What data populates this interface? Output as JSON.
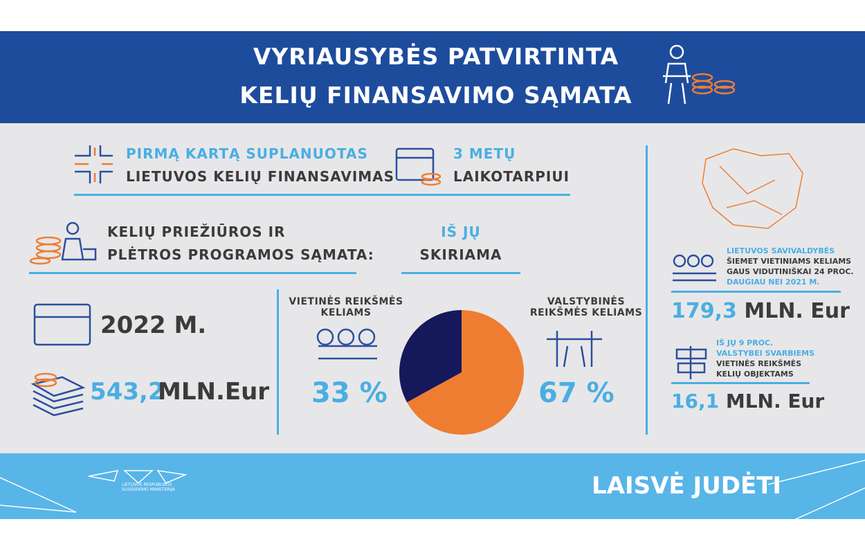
{
  "header": {
    "title_lines": [
      "VYRIAUSYBĖS PATVIRTINTA",
      "KELIŲ FINANSAVIMO SĄMATA"
    ]
  },
  "intro": {
    "line1": "PIRMĄ KARTĄ SUPLANUOTAS",
    "line2": "LIETUVOS KELIŲ FINANSAVIMAS",
    "period1": "3 METŲ",
    "period2": "LAIKOTARPIUI"
  },
  "program": {
    "line1": "KELIŲ PRIEŽIŪROS IR",
    "line2": "PLĖTROS PROGRAMOS SĄMATA:",
    "alloc1": "IŠ JŲ",
    "alloc2": "SKIRIAMA"
  },
  "year": "2022 M.",
  "budget": {
    "amount": "543,2",
    "unit": "MLN.Eur"
  },
  "chart_data": {
    "type": "pie",
    "categories": [
      "VIETINĖS REIKŠMĖS KELIAMS",
      "VALSTYBINĖS REIKŠMĖS KELIAMS"
    ],
    "values": [
      33,
      67
    ],
    "value_labels": [
      "33 %",
      "67 %"
    ],
    "colors": [
      "#15185a",
      "#ee7d32"
    ]
  },
  "municipalities": {
    "lines": [
      "LIETUVOS SAVIVALDYBĖS",
      "ŠIEMET VIETINIAMS KELIAMS",
      "GAUS VIDUTINIŠKAI 24 PROC.",
      "DAUGIAU NEI 2021 M."
    ],
    "amount": "179,3",
    "unit": "MLN. Eur"
  },
  "important": {
    "lines": [
      "IŠ JŲ 9 PROC.",
      "VALSTYBEI SVARBIEMS",
      "VIETINĖS REIKŠMĖS",
      "KELIŲ OBJEKTAMS"
    ],
    "amount": "16,1",
    "unit": "MLN. Eur"
  },
  "footer": {
    "logo_lines": [
      "LIETUVOS RESPUBLIKOS",
      "SUSISIEKIMO MINISTERIJA"
    ],
    "slogan": "LAISVĖ JUDĖTI"
  }
}
